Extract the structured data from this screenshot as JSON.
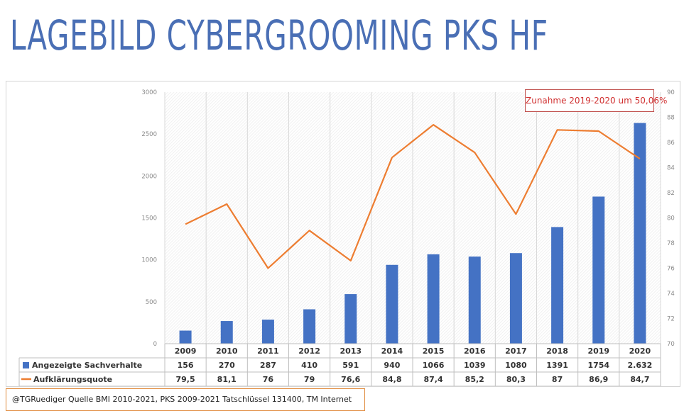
{
  "title": "LAGEBILD CYBERGROOMING PKS HF",
  "annotation": "Zunahme 2019-2020 um 50,06%",
  "source_note": "@TGRuediger Quelle BMI 2010-2021, PKS 2009-2021 Tatschlüssel 131400, TM Internet",
  "colors": {
    "bar": "#4472c4",
    "line": "#ed7d31",
    "title": "#4a6fb5",
    "annotation_border": "#c0504d"
  },
  "chart_data": {
    "type": "bar",
    "title": "",
    "categories": [
      "2009",
      "2010",
      "2011",
      "2012",
      "2013",
      "2014",
      "2015",
      "2016",
      "2017",
      "2018",
      "2019",
      "2020"
    ],
    "series": [
      {
        "name": "Angezeigte Sachverhalte",
        "type": "bar",
        "axis": "left",
        "values": [
          156,
          270,
          287,
          410,
          591,
          940,
          1066,
          1039,
          1080,
          1391,
          1754,
          2632
        ],
        "labels": [
          "156",
          "270",
          "287",
          "410",
          "591",
          "940",
          "1066",
          "1039",
          "1080",
          "1391",
          "1754",
          "2.632"
        ]
      },
      {
        "name": "Aufklärungsquote",
        "type": "line",
        "axis": "right",
        "values": [
          79.5,
          81.1,
          76,
          79,
          76.6,
          84.8,
          87.4,
          85.2,
          80.3,
          87,
          86.9,
          84.7
        ],
        "labels": [
          "79,5",
          "81,1",
          "76",
          "79",
          "76,6",
          "84,8",
          "87,4",
          "85,2",
          "80,3",
          "87",
          "86,9",
          "84,7"
        ]
      }
    ],
    "y_left": {
      "range": [
        0,
        3000
      ],
      "ticks": [
        "0",
        "500",
        "1000",
        "1500",
        "2000",
        "2500",
        "3000"
      ]
    },
    "y_right": {
      "range": [
        70,
        90
      ],
      "ticks": [
        "70",
        "72",
        "74",
        "76",
        "78",
        "80",
        "82",
        "84",
        "86",
        "88",
        "90"
      ]
    },
    "grid": "vertical",
    "legend": "data-table"
  }
}
